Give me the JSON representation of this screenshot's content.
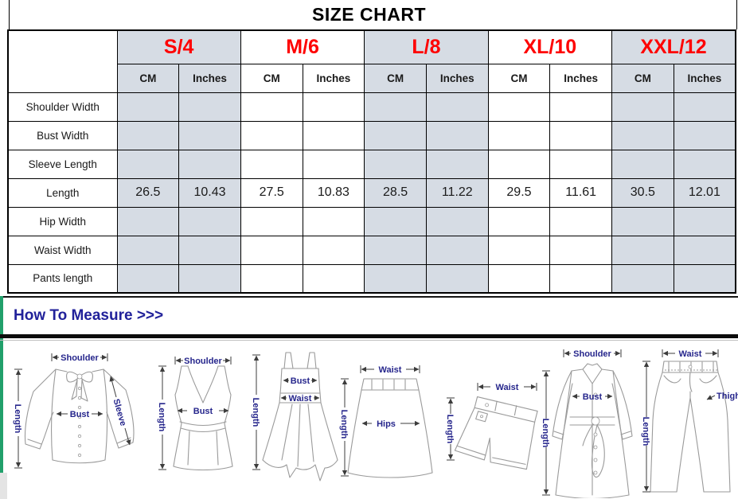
{
  "title": "SIZE CHART",
  "table": {
    "sizes": [
      {
        "label": "S/4",
        "shaded": true
      },
      {
        "label": "M/6",
        "shaded": false
      },
      {
        "label": "L/8",
        "shaded": true
      },
      {
        "label": "XL/10",
        "shaded": false
      },
      {
        "label": "XXL/12",
        "shaded": true
      }
    ],
    "unit_headers": [
      "CM",
      "Inches"
    ],
    "rows": [
      {
        "label": "Shoulder Width",
        "values": [
          "",
          "",
          "",
          "",
          "",
          "",
          "",
          "",
          "",
          ""
        ]
      },
      {
        "label": "Bust Width",
        "values": [
          "",
          "",
          "",
          "",
          "",
          "",
          "",
          "",
          "",
          ""
        ]
      },
      {
        "label": "Sleeve Length",
        "values": [
          "",
          "",
          "",
          "",
          "",
          "",
          "",
          "",
          "",
          ""
        ]
      },
      {
        "label": "Length",
        "values": [
          "26.5",
          "10.43",
          "27.5",
          "10.83",
          "28.5",
          "11.22",
          "29.5",
          "11.61",
          "30.5",
          "12.01"
        ]
      },
      {
        "label": "Hip Width",
        "values": [
          "",
          "",
          "",
          "",
          "",
          "",
          "",
          "",
          "",
          ""
        ]
      },
      {
        "label": "Waist Width",
        "values": [
          "",
          "",
          "",
          "",
          "",
          "",
          "",
          "",
          "",
          ""
        ]
      },
      {
        "label": "Pants length",
        "values": [
          "",
          "",
          "",
          "",
          "",
          "",
          "",
          "",
          "",
          ""
        ]
      }
    ]
  },
  "measure_section": {
    "heading": "How To Measure >>>",
    "figures": [
      {
        "name": "blouse",
        "labels": [
          "Shoulder",
          "Bust",
          "Sleeve",
          "Length"
        ]
      },
      {
        "name": "tank-top",
        "labels": [
          "Shoulder",
          "Bust",
          "Length"
        ]
      },
      {
        "name": "dress",
        "labels": [
          "Bust",
          "Waist",
          "Length"
        ]
      },
      {
        "name": "skirt",
        "labels": [
          "Waist",
          "Hips",
          "Length"
        ]
      },
      {
        "name": "shorts",
        "labels": [
          "Waist",
          "Length"
        ]
      },
      {
        "name": "coat",
        "labels": [
          "Shoulder",
          "Bust",
          "Length"
        ]
      },
      {
        "name": "pants",
        "labels": [
          "Waist",
          "Thigh",
          "Length"
        ]
      }
    ]
  },
  "colors": {
    "shaded_cell": "#d6dce4",
    "size_label_text": "#fe0000",
    "heading_text": "#21219a",
    "figure_label_text": "#26268c",
    "accent_bar": "#21a06b",
    "table_border": "#000000"
  }
}
